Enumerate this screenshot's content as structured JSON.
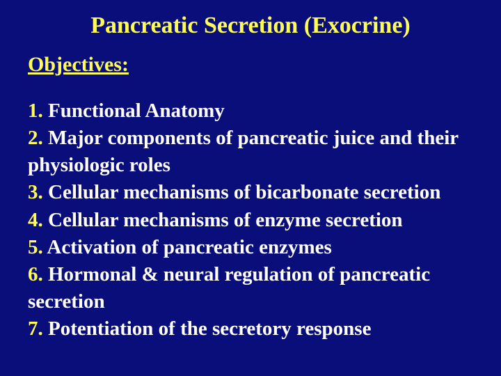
{
  "colors": {
    "background": "#0a0e7a",
    "accent": "#fffd55",
    "body_text": "#ffffff"
  },
  "typography": {
    "font_family": "Times New Roman",
    "title_fontsize_pt": 26,
    "label_fontsize_pt": 22,
    "body_fontsize_pt": 22,
    "title_weight": "bold",
    "body_weight": "bold"
  },
  "title": "Pancreatic Secretion (Exocrine)",
  "objectives_label": "Objectives:",
  "items": {
    "n1": "1.",
    "t1": "   Functional Anatomy",
    "n2": "2.",
    "t2": "   Major components of pancreatic juice and their physiologic roles",
    "n3": "3.",
    "t3": "   Cellular mechanisms of bicarbonate secretion",
    "n4": "4.",
    "t4": "   Cellular mechanisms of enzyme secretion",
    "n5": "5.",
    "t5": "   Activation of pancreatic enzymes",
    "n6": "6.",
    "t6": "   Hormonal & neural regulation of pancreatic secretion",
    "n7": "7.",
    "t7": "   Potentiation of the secretory response"
  }
}
